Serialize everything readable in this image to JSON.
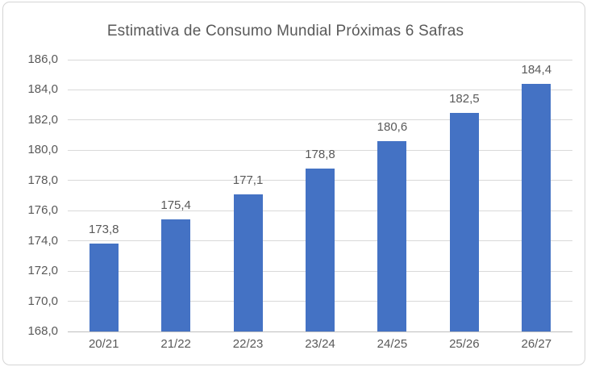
{
  "chart_data": {
    "type": "bar",
    "title": "Estimativa de Consumo Mundial Próximas 6 Safras",
    "categories": [
      "20/21",
      "21/22",
      "22/23",
      "23/24",
      "24/25",
      "25/26",
      "26/27"
    ],
    "values": [
      173.8,
      175.4,
      177.1,
      178.8,
      180.6,
      182.5,
      184.4
    ],
    "value_labels": [
      "173,8",
      "175,4",
      "177,1",
      "178,8",
      "180,6",
      "182,5",
      "184,4"
    ],
    "xlabel": "",
    "ylabel": "",
    "ylim": [
      168,
      186
    ],
    "ytick_step": 2,
    "ytick_labels": [
      "168,0",
      "170,0",
      "172,0",
      "174,0",
      "176,0",
      "178,0",
      "180,0",
      "182,0",
      "184,0",
      "186,0"
    ],
    "grid": true,
    "legend": false,
    "colors": {
      "bar": "#4472C4",
      "text": "#595959",
      "gridline": "#D9D9D9",
      "axis_line": "#BFBFBF",
      "frame_border": "#D5D5D5"
    }
  }
}
